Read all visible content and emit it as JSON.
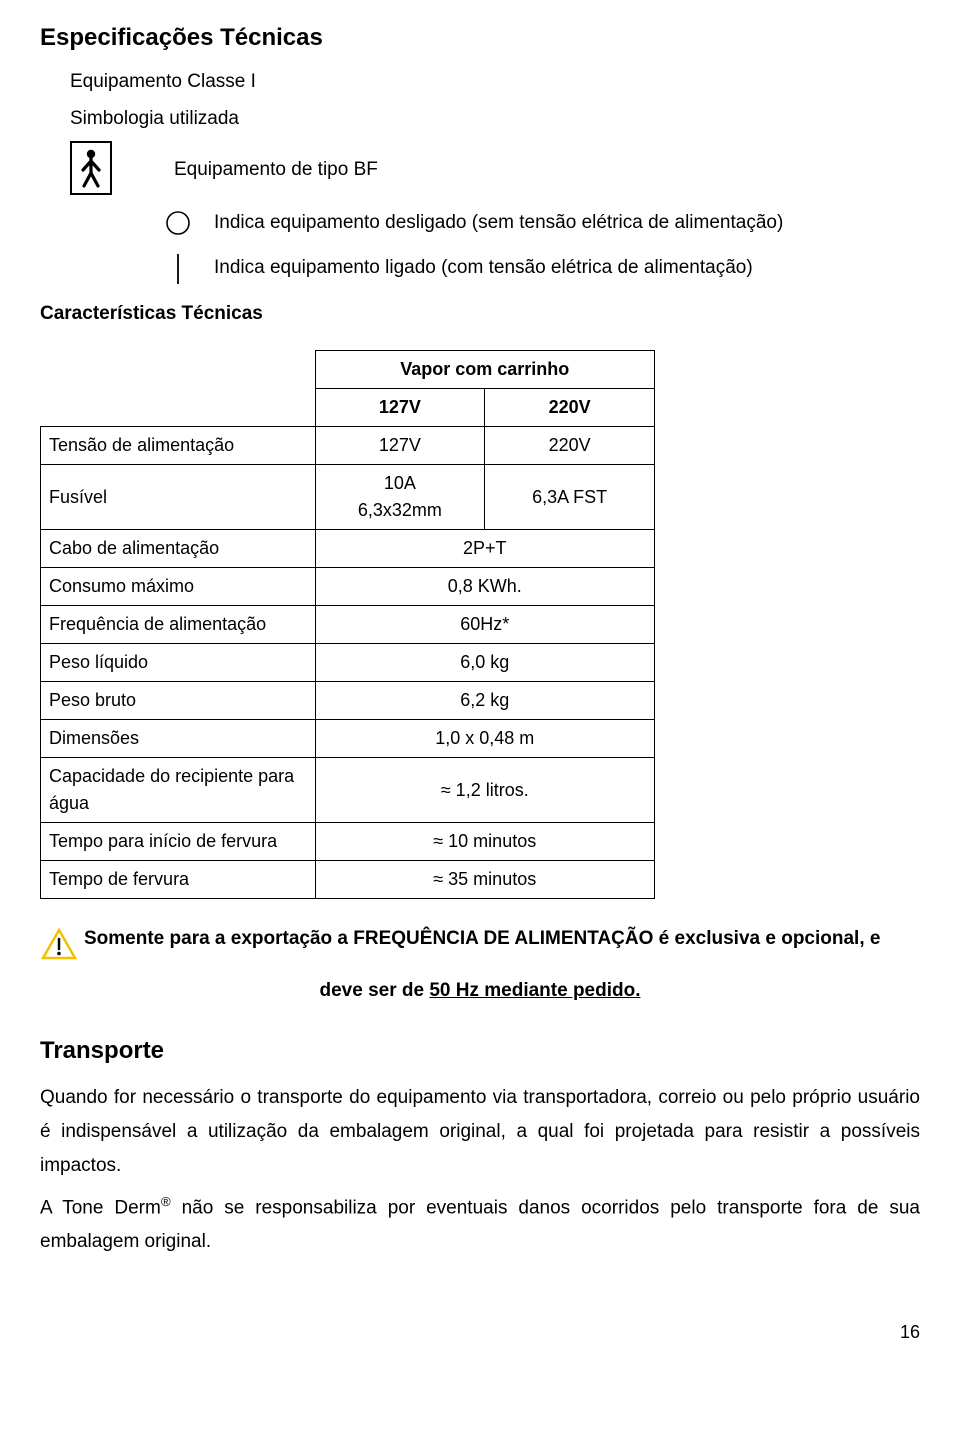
{
  "title": "Especificações Técnicas",
  "intro": {
    "line1": "Equipamento Classe I",
    "line2": "Simbologia utilizada",
    "bf_label": "Equipamento de tipo BF",
    "legend_off": "Indica equipamento desligado (sem tensão elétrica de alimentação)",
    "legend_on": "Indica equipamento ligado (com tensão elétrica de alimentação)"
  },
  "subsection": "Características Técnicas",
  "table": {
    "header_title": "Vapor com carrinho",
    "col1": "127V",
    "col2": "220V",
    "rows": [
      {
        "label": "Tensão de alimentação",
        "v1": "127V",
        "v2": "220V",
        "span": false
      },
      {
        "label": "Fusível",
        "v1": "10A\n6,3x32mm",
        "v2": "6,3A FST",
        "span": false
      },
      {
        "label": "Cabo de alimentação",
        "v": "2P+T",
        "span": true
      },
      {
        "label": "Consumo máximo",
        "v": "0,8 KWh.",
        "span": true
      },
      {
        "label": "Frequência de alimentação",
        "v": "60Hz*",
        "span": true
      },
      {
        "label": "Peso líquido",
        "v": "6,0 kg",
        "span": true
      },
      {
        "label": "Peso bruto",
        "v": "6,2 kg",
        "span": true
      },
      {
        "label": "Dimensões",
        "v": "1,0 x 0,48 m",
        "span": true
      },
      {
        "label": "Capacidade do recipiente para água",
        "v": "≈ 1,2 litros.",
        "span": true
      },
      {
        "label": "Tempo para início de fervura",
        "v": "≈ 10 minutos",
        "span": true
      },
      {
        "label": "Tempo de fervura",
        "v": "≈ 35 minutos",
        "span": true
      }
    ]
  },
  "warning": {
    "line1": "Somente para a exportação a FREQUÊNCIA DE ALIMENTAÇÃO é exclusiva e opcional, e",
    "line2_pre": "deve ser de ",
    "line2_underlined": "50 Hz mediante pedido.",
    "icon_stroke": "#f2c200",
    "icon_fill": "#ffffff"
  },
  "transport": {
    "title": "Transporte",
    "para1": "Quando for necessário o transporte do equipamento via transportadora, correio ou pelo próprio usuário é indispensável a utilização da embalagem original, a qual foi projetada para resistir a possíveis impactos.",
    "para2_pre": "A Tone Derm",
    "para2_reg": "®",
    "para2_post": " não se responsabiliza por eventuais danos ocorridos pelo transporte fora de sua embalagem original."
  },
  "page_number": "16"
}
